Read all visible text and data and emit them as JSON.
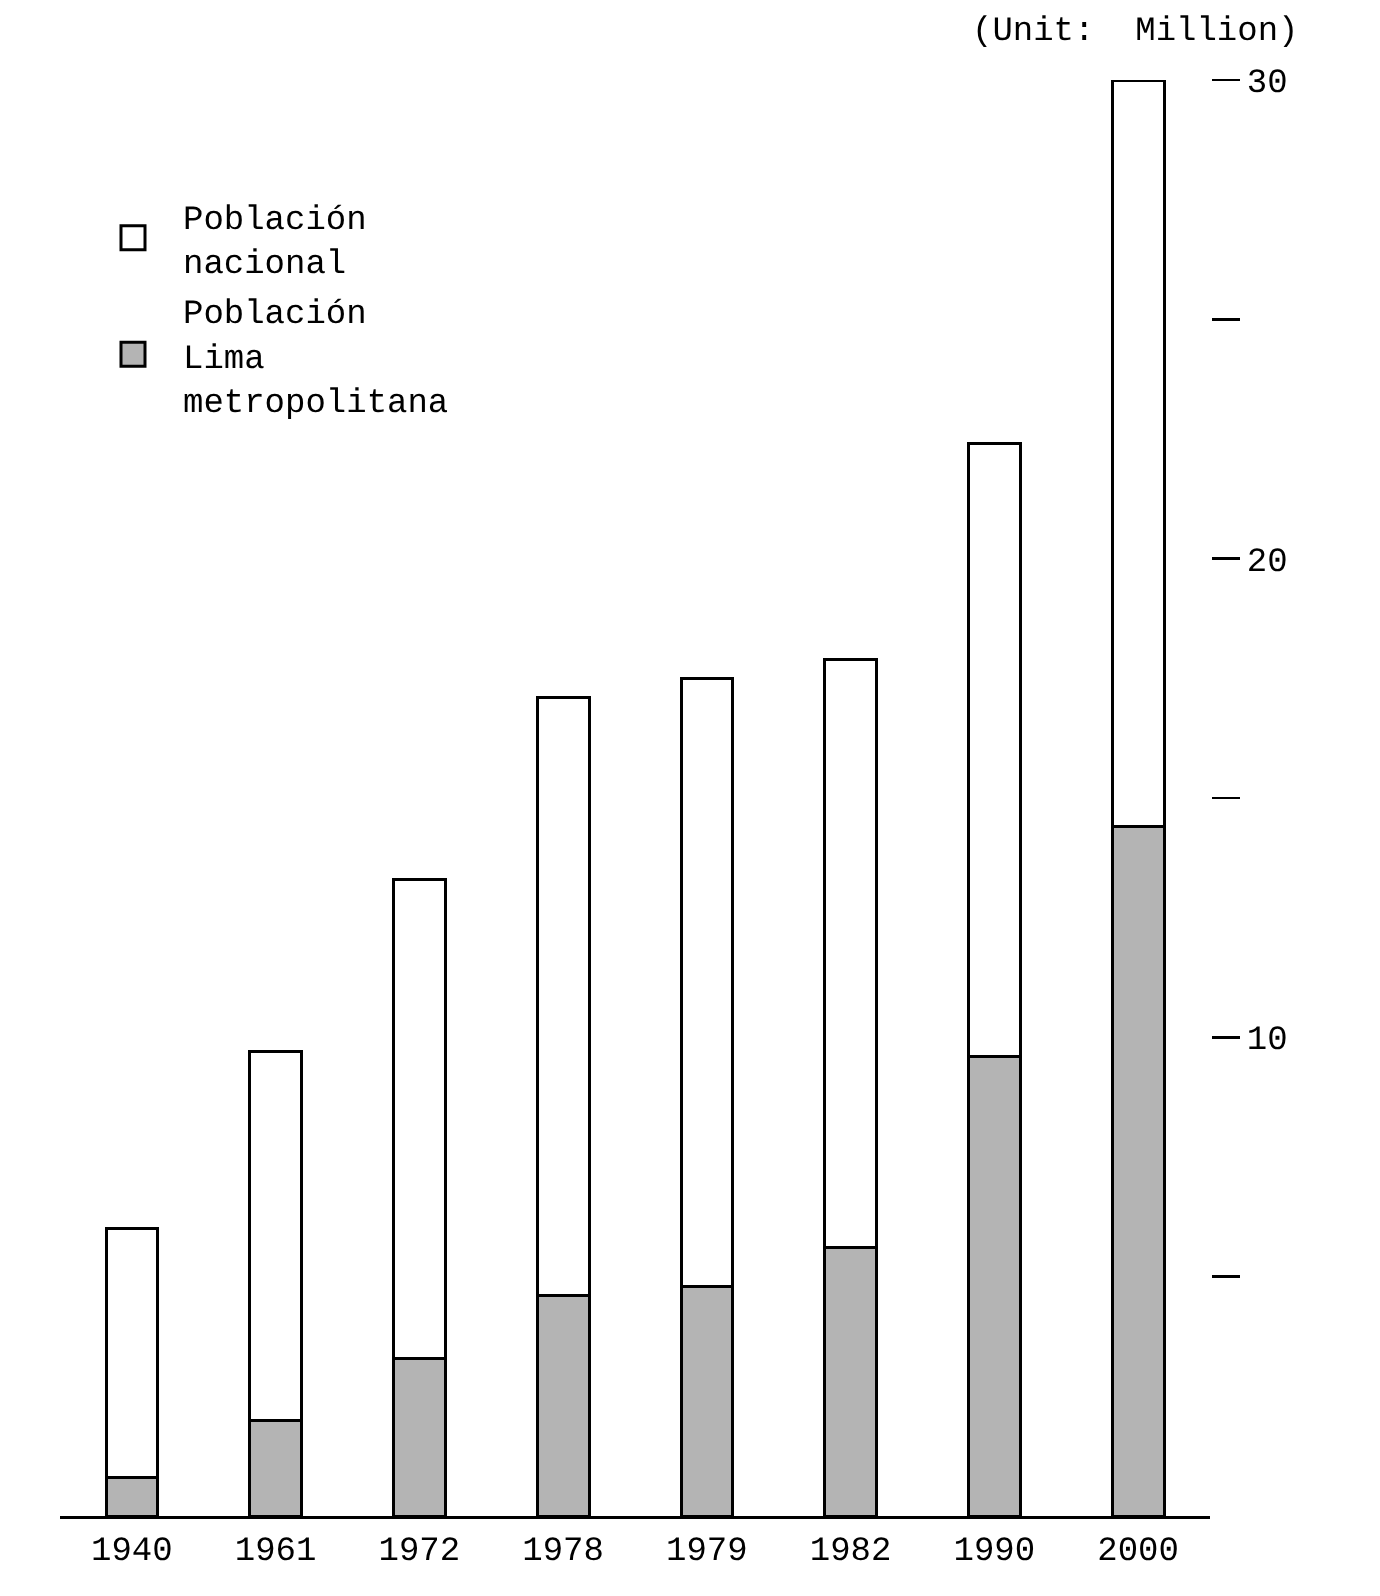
{
  "chart_data": {
    "type": "bar",
    "stacked": true,
    "ylabel": "(Unit:  Million)",
    "categories": [
      "1940",
      "1961",
      "1972",
      "1978",
      "1979",
      "1982",
      "1990",
      "2000"
    ],
    "series": [
      {
        "name": "Población Lima metropolitana",
        "color": "#b4b4b4",
        "values": [
          0.8,
          2.0,
          3.3,
          4.6,
          4.8,
          5.6,
          9.6,
          14.4
        ]
      },
      {
        "name": "Población nacional",
        "color": "#ffffff",
        "values": [
          5.2,
          7.7,
          10.0,
          12.5,
          12.7,
          12.3,
          12.8,
          15.6
        ]
      }
    ],
    "ylim": [
      0,
      30
    ],
    "yticks": [
      {
        "value": 5,
        "label": null
      },
      10,
      {
        "value": 15,
        "label": null
      },
      20,
      {
        "value": 25,
        "label": null
      },
      30
    ],
    "grid": false,
    "legend": "top left"
  }
}
